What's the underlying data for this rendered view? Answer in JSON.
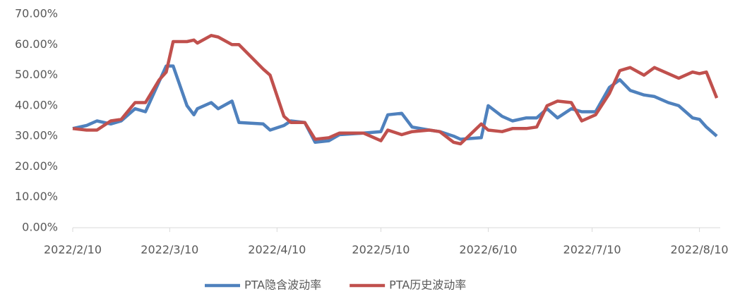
{
  "chart_data": {
    "type": "line",
    "x": [
      "2022/2/10",
      "2022/2/14",
      "2022/2/17",
      "2022/2/21",
      "2022/2/24",
      "2022/2/28",
      "2022/3/3",
      "2022/3/7",
      "2022/3/9",
      "2022/3/11",
      "2022/3/15",
      "2022/3/17",
      "2022/3/18",
      "2022/3/22",
      "2022/3/24",
      "2022/3/28",
      "2022/3/30",
      "2022/4/6",
      "2022/4/8",
      "2022/4/12",
      "2022/4/14",
      "2022/4/18",
      "2022/4/21",
      "2022/4/25",
      "2022/4/28",
      "2022/5/5",
      "2022/5/10",
      "2022/5/12",
      "2022/5/16",
      "2022/5/19",
      "2022/5/24",
      "2022/5/27",
      "2022/5/31",
      "2022/6/2",
      "2022/6/8",
      "2022/6/10",
      "2022/6/14",
      "2022/6/17",
      "2022/6/21",
      "2022/6/24",
      "2022/6/27",
      "2022/6/30",
      "2022/7/4",
      "2022/7/7",
      "2022/7/11",
      "2022/7/15",
      "2022/7/18",
      "2022/7/21",
      "2022/7/25",
      "2022/7/28",
      "2022/8/1",
      "2022/8/4",
      "2022/8/8",
      "2022/8/10",
      "2022/8/12",
      "2022/8/15"
    ],
    "series": [
      {
        "name": "PTA隐含波动率",
        "color": "#4f81bd",
        "values": [
          32.5,
          33.5,
          35,
          34,
          35,
          39,
          38,
          48,
          53,
          53,
          40,
          37,
          39,
          41,
          39,
          41.5,
          34.5,
          34,
          32,
          33.5,
          35,
          34.5,
          28,
          28.5,
          30.5,
          31,
          31.5,
          37,
          37.5,
          33,
          32,
          31.5,
          30,
          29,
          29.5,
          40,
          36.5,
          35,
          36,
          36,
          39,
          36,
          39,
          38,
          38,
          46,
          48.5,
          45,
          43.5,
          43,
          41,
          40,
          36,
          35.5,
          33,
          30
        ]
      },
      {
        "name": "PTA历史波动率",
        "color": "#c0504d",
        "values": [
          32.5,
          32,
          32,
          35,
          35.5,
          41,
          41,
          48.5,
          51,
          61,
          61,
          61.5,
          60.5,
          63,
          62.5,
          60,
          60,
          52,
          50,
          36.5,
          34.5,
          34.5,
          29,
          29.5,
          31,
          31,
          28.5,
          32,
          30.5,
          31.5,
          32,
          31.5,
          28,
          27.5,
          34,
          32,
          31.5,
          32.5,
          32.5,
          33,
          40,
          41.5,
          41,
          35,
          37,
          44,
          51.5,
          52.5,
          50,
          52.5,
          50.5,
          49,
          51,
          50.5,
          51,
          42.5
        ]
      }
    ],
    "xlim": [
      "2022/2/10",
      "2022/8/16"
    ],
    "xticks": [
      "2022/2/10",
      "2022/3/10",
      "2022/4/10",
      "2022/5/10",
      "2022/6/10",
      "2022/7/10",
      "2022/8/10"
    ],
    "ylim": [
      0,
      70
    ],
    "yticks": [
      {
        "value": 0,
        "label": "0.00%"
      },
      {
        "value": 10,
        "label": "10.00%"
      },
      {
        "value": 20,
        "label": "20.00%"
      },
      {
        "value": 30,
        "label": "30.00%"
      },
      {
        "value": 40,
        "label": "40.00%"
      },
      {
        "value": 50,
        "label": "50.00%"
      },
      {
        "value": 60,
        "label": "60.00%"
      },
      {
        "value": 70,
        "label": "70.00%"
      }
    ],
    "grid": false,
    "legend": "bottom"
  }
}
